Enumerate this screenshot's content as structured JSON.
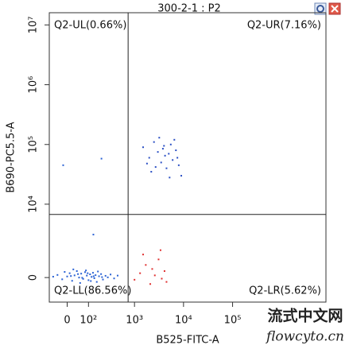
{
  "chart_data": {
    "type": "scatter",
    "title": "300-2-1 : P2",
    "xlabel": "B525-FITC-A",
    "ylabel": "B690-PC5.5-A",
    "xscale": "biexponential",
    "yscale": "biexponential",
    "xlim": [
      -80,
      8000000
    ],
    "ylim": [
      -1300,
      16000000
    ],
    "xticks": [
      0,
      {
        "value": 100,
        "label": "10²"
      },
      {
        "value": 1000,
        "label": "10³"
      },
      {
        "value": 10000,
        "label": "10⁴"
      },
      {
        "value": 100000,
        "label": "10⁵"
      }
    ],
    "yticks": [
      0,
      {
        "value": 10000,
        "label": "10⁴"
      },
      {
        "value": 100000,
        "label": "10⁵"
      },
      {
        "value": 1000000,
        "label": "10⁶"
      },
      {
        "value": 10000000,
        "label": "10⁷"
      }
    ],
    "gate": {
      "x": 740,
      "y": 6700
    },
    "quadrants": {
      "UL": "Q2-UL(0.66%)",
      "UR": "Q2-UR(7.16%)",
      "LL": "Q2-LL(86.56%)",
      "LR": "Q2-LR(5.62%)"
    },
    "series": [
      {
        "color": "#2a62d4",
        "x": [
          -40,
          -20,
          0,
          10,
          20,
          30,
          40,
          50,
          60,
          70,
          80,
          90,
          100,
          110,
          120,
          130,
          140,
          150,
          160,
          180,
          200,
          220,
          250,
          280,
          320,
          380,
          450,
          25,
          55,
          85,
          15,
          45,
          65,
          95,
          115,
          135,
          170,
          210,
          -60,
          -10,
          133,
          204,
          -16
        ],
        "y": [
          120,
          -80,
          50,
          200,
          -150,
          100,
          300,
          0,
          180,
          -60,
          250,
          90,
          -120,
          150,
          30,
          220,
          -30,
          110,
          -200,
          60,
          160,
          -90,
          80,
          10,
          140,
          -40,
          90,
          380,
          -250,
          330,
          70,
          160,
          -10,
          200,
          -160,
          60,
          280,
          20,
          40,
          260,
          3000,
          58000,
          45000
        ]
      },
      {
        "color": "#2a4fc4",
        "x": [
          1500,
          2000,
          2500,
          3000,
          3500,
          4000,
          4500,
          5000,
          5500,
          6000,
          7000,
          8000,
          9000,
          2200,
          3200,
          4200,
          5200,
          6500,
          1800,
          3800,
          7500,
          2700
        ],
        "y": [
          90000,
          60000,
          110000,
          75000,
          50000,
          95000,
          40000,
          70000,
          100000,
          55000,
          80000,
          45000,
          30000,
          35000,
          130000,
          65000,
          28000,
          120000,
          48000,
          85000,
          60000,
          42000
        ]
      },
      {
        "color": "#e03030",
        "x": [
          1000,
          1300,
          1700,
          2100,
          2600,
          3100,
          3600,
          4100,
          1500,
          2300,
          3400,
          4500
        ],
        "y": [
          -100,
          200,
          600,
          -300,
          100,
          900,
          -50,
          300,
          1200,
          400,
          1500,
          -200
        ]
      }
    ],
    "watermark": {
      "title": "流式中文网",
      "url": "flowcyto.cn"
    }
  }
}
